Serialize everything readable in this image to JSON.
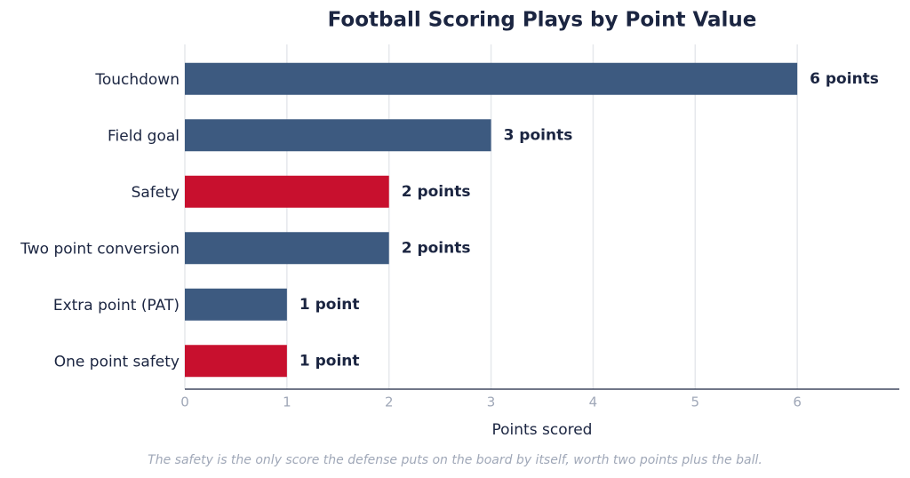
{
  "chart_data": {
    "type": "bar",
    "orientation": "horizontal",
    "title": "Football Scoring Plays by Point Value",
    "categories": [
      "Touchdown",
      "Field goal",
      "Safety",
      "Two point conversion",
      "Extra point (PAT)",
      "One point safety"
    ],
    "values": [
      6,
      3,
      2,
      2,
      1,
      1
    ],
    "value_labels": [
      "6 points",
      "3 points",
      "2 points",
      "2 points",
      "1 point",
      "1 point"
    ],
    "colors": [
      "#3d5a80",
      "#3d5a80",
      "#c8102e",
      "#3d5a80",
      "#3d5a80",
      "#c8102e"
    ],
    "xlim": [
      0,
      7
    ],
    "xticks": [
      0,
      1,
      2,
      3,
      4,
      5,
      6
    ],
    "grid": true,
    "xlabel": "Points scored",
    "note": "The safety is the only score the defense puts on the board by itself, worth two points plus the ball."
  }
}
